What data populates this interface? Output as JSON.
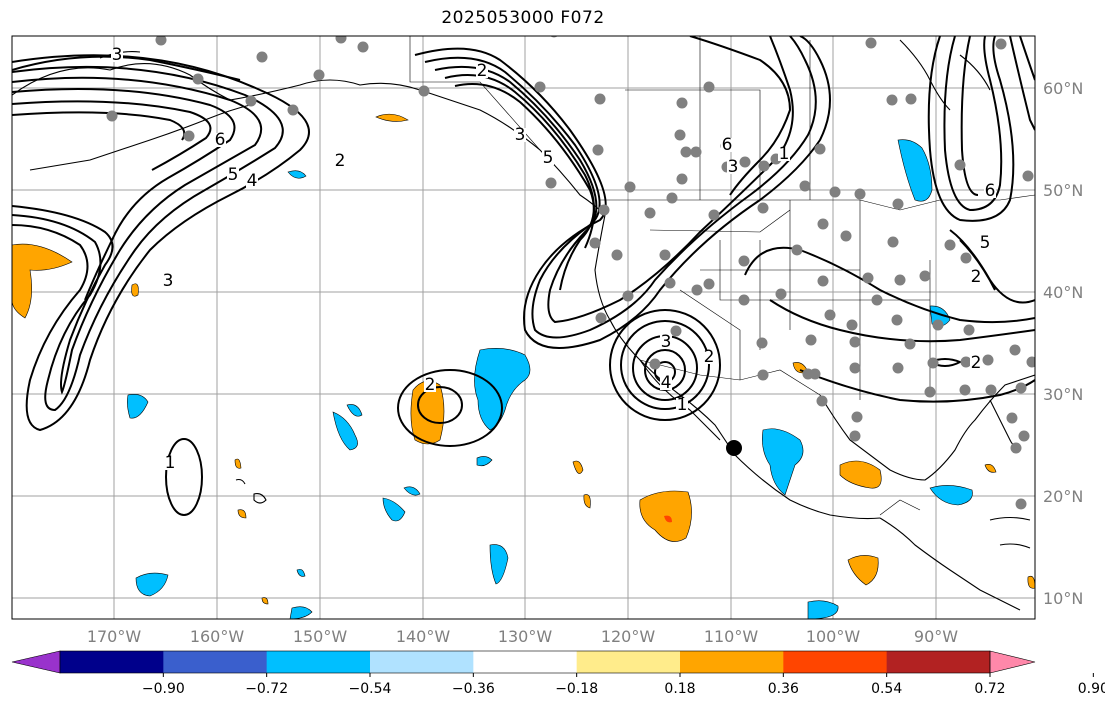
{
  "title": "2025053000 F072",
  "lat_ticks": [
    "60°N",
    "50°N",
    "40°N",
    "30°N",
    "20°N",
    "10°N"
  ],
  "lon_ticks": [
    "170°W",
    "160°W",
    "150°W",
    "140°W",
    "130°W",
    "120°W",
    "110°W",
    "100°W",
    "90°W"
  ],
  "colorbar": {
    "tick_labels": [
      "−0.90",
      "−0.72",
      "−0.54",
      "−0.36",
      "−0.18",
      "0.18",
      "0.36",
      "0.54",
      "0.72",
      "0.90"
    ],
    "colors": [
      "#9932cc",
      "#00008b",
      "#3a5fcd",
      "#00bfff",
      "#b0e2ff",
      "#ffffff",
      "#ffec8b",
      "#ffa500",
      "#ff4500",
      "#b22222",
      "#ff88aa"
    ]
  },
  "contour_labels": [
    "3",
    "6",
    "5",
    "4",
    "2",
    "3",
    "2",
    "3",
    "5",
    "6",
    "3",
    "1",
    "2",
    "3",
    "4",
    "1",
    "2",
    "1",
    "2",
    "6",
    "2",
    "5"
  ],
  "colors": {
    "positive": "#ffa500",
    "negative": "#00bfff",
    "station": "#808080",
    "grid": "#a0a0a0"
  }
}
